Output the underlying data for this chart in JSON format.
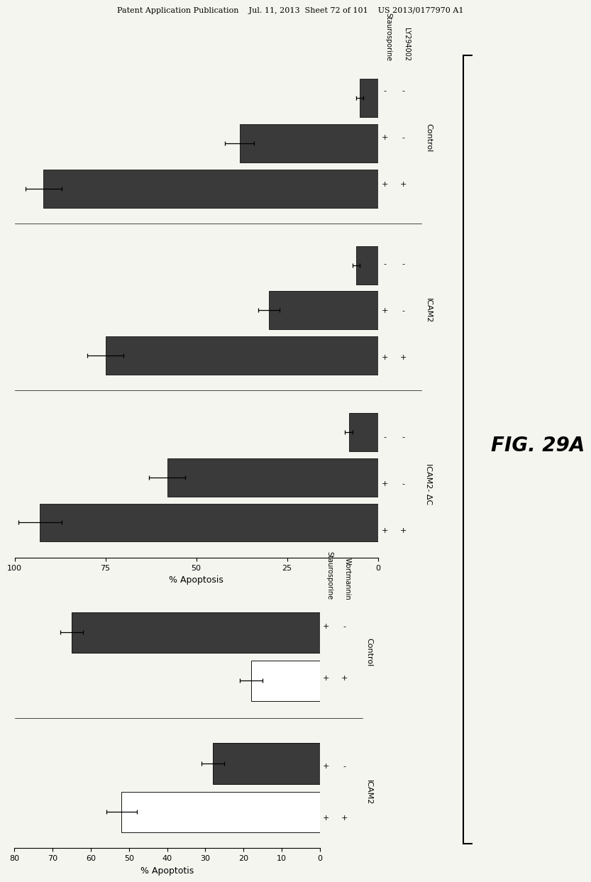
{
  "top_chart": {
    "xlabel": "% Apoptosis",
    "xlim": [
      0,
      100
    ],
    "xticks": [
      0,
      25,
      50,
      75,
      100
    ],
    "groups": [
      {
        "name": "Control",
        "bars": [
          {
            "stau": "-",
            "ly": "-",
            "value": 5,
            "error": 1,
            "color": "#3a3a3a"
          },
          {
            "stau": "+",
            "ly": "-",
            "value": 38,
            "error": 4,
            "color": "#3a3a3a"
          },
          {
            "stau": "+",
            "ly": "+",
            "value": 92,
            "error": 5,
            "color": "#3a3a3a"
          }
        ]
      },
      {
        "name": "ICAM2",
        "bars": [
          {
            "stau": "-",
            "ly": "-",
            "value": 6,
            "error": 1,
            "color": "#3a3a3a"
          },
          {
            "stau": "+",
            "ly": "-",
            "value": 30,
            "error": 3,
            "color": "#3a3a3a"
          },
          {
            "stau": "+",
            "ly": "+",
            "value": 75,
            "error": 5,
            "color": "#3a3a3a"
          }
        ]
      },
      {
        "name": "ICAM2- ΔC",
        "bars": [
          {
            "stau": "-",
            "ly": "-",
            "value": 8,
            "error": 1,
            "color": "#3a3a3a"
          },
          {
            "stau": "+",
            "ly": "-",
            "value": 58,
            "error": 5,
            "color": "#3a3a3a"
          },
          {
            "stau": "+",
            "ly": "+",
            "value": 93,
            "error": 6,
            "color": "#3a3a3a"
          }
        ]
      }
    ]
  },
  "bottom_chart": {
    "xlabel": "% Apoptotis",
    "xlim": [
      0,
      80
    ],
    "xticks": [
      0,
      10,
      20,
      30,
      40,
      50,
      60,
      70,
      80
    ],
    "groups": [
      {
        "name": "Control",
        "bars": [
          {
            "stau": "+",
            "wort": "-",
            "value": 65,
            "error": 3,
            "color": "#3a3a3a"
          },
          {
            "stau": "+",
            "wort": "+",
            "value": 18,
            "error": 3,
            "color": "#ffffff"
          }
        ]
      },
      {
        "name": "ICAM2",
        "bars": [
          {
            "stau": "+",
            "wort": "-",
            "value": 28,
            "error": 3,
            "color": "#3a3a3a"
          },
          {
            "stau": "+",
            "wort": "+",
            "value": 52,
            "error": 4,
            "color": "#ffffff"
          }
        ]
      }
    ]
  },
  "header_text": "Patent Application Publication    Jul. 11, 2013  Sheet 72 of 101    US 2013/0177970 A1",
  "fig_label": "FIG. 29A",
  "background_color": "#f5f5f0",
  "bar_edge_color": "#111111",
  "text_color": "#000000"
}
